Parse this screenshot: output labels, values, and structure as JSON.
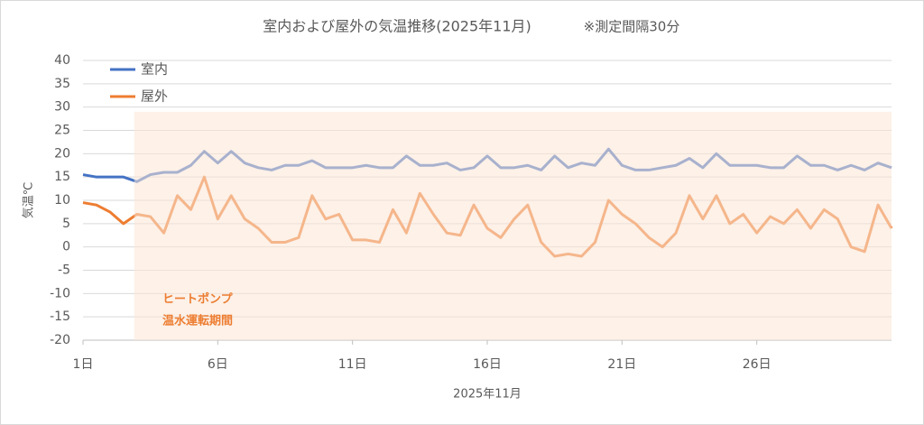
{
  "chart_data": {
    "type": "line",
    "title": "室内および屋外の気温推移(2025年11月)",
    "subtitle": "※測定間隔30分",
    "xlabel": "2025年11月",
    "ylabel": "気温℃",
    "x": [
      1,
      1.5,
      2,
      2.5,
      3,
      3.5,
      4,
      4.5,
      5,
      5.5,
      6,
      6.5,
      7,
      7.5,
      8,
      8.5,
      9,
      9.5,
      10,
      10.5,
      11,
      11.5,
      12,
      12.5,
      13,
      13.5,
      14,
      14.5,
      15,
      15.5,
      16,
      16.5,
      17,
      17.5,
      18,
      18.5,
      19,
      19.5,
      20,
      20.5,
      21,
      21.5,
      22,
      22.5,
      23,
      23.5,
      24,
      24.5,
      25,
      25.5,
      26,
      26.5,
      27,
      27.5,
      28,
      28.5,
      29,
      29.5,
      30,
      30.5,
      31
    ],
    "series": [
      {
        "name": "室内",
        "color": "#4472c4",
        "values": [
          15.5,
          15,
          15,
          15,
          14,
          15.5,
          16,
          16,
          17.5,
          20.5,
          18,
          20.5,
          18,
          17,
          16.5,
          17.5,
          17.5,
          18.5,
          17,
          17,
          17,
          17.5,
          17,
          17,
          19.5,
          17.5,
          17.5,
          18,
          16.5,
          17,
          19.5,
          17,
          17,
          17.5,
          16.5,
          19.5,
          17,
          18,
          17.5,
          21,
          17.5,
          16.5,
          16.5,
          17,
          17.5,
          19,
          17,
          20,
          17.5,
          17.5,
          17.5,
          17,
          17,
          19.5,
          17.5,
          17.5,
          16.5,
          17.5,
          16.5,
          18,
          17
        ]
      },
      {
        "name": "屋外",
        "color": "#ed7d31",
        "values": [
          9.5,
          9,
          7.5,
          5,
          7,
          6.5,
          3,
          11,
          8,
          15,
          6,
          11,
          6,
          4,
          1,
          1,
          2,
          11,
          6,
          7,
          1.5,
          1.5,
          1,
          8,
          3,
          11.5,
          7,
          3,
          2.5,
          9,
          4,
          2,
          6,
          9,
          1,
          -2,
          -1.5,
          -2,
          1,
          10,
          7,
          5,
          2,
          0,
          3,
          11,
          6,
          11,
          5,
          7,
          3,
          6.5,
          5,
          8,
          4,
          8,
          6,
          0,
          -1,
          9,
          4
        ]
      }
    ],
    "xlim": [
      1,
      31
    ],
    "xticks": [
      {
        "value": 1,
        "label": "1日"
      },
      {
        "value": 6,
        "label": "6日"
      },
      {
        "value": 11,
        "label": "11日"
      },
      {
        "value": 16,
        "label": "16日"
      },
      {
        "value": 21,
        "label": "21日"
      },
      {
        "value": 26,
        "label": "26日"
      }
    ],
    "ylim": [
      -20,
      40
    ],
    "yticks": [
      -20,
      -15,
      -10,
      -5,
      0,
      5,
      10,
      15,
      20,
      25,
      30,
      35,
      40
    ],
    "grid": true,
    "legend": "top-left",
    "shaded_region": {
      "xlim": [
        2.9,
        31
      ],
      "ylim": [
        -20,
        29
      ],
      "color": "#fbe5d6",
      "label_lines": [
        "ヒートポンプ",
        "温水運転期間"
      ],
      "label_color": "#ed7d31"
    }
  }
}
